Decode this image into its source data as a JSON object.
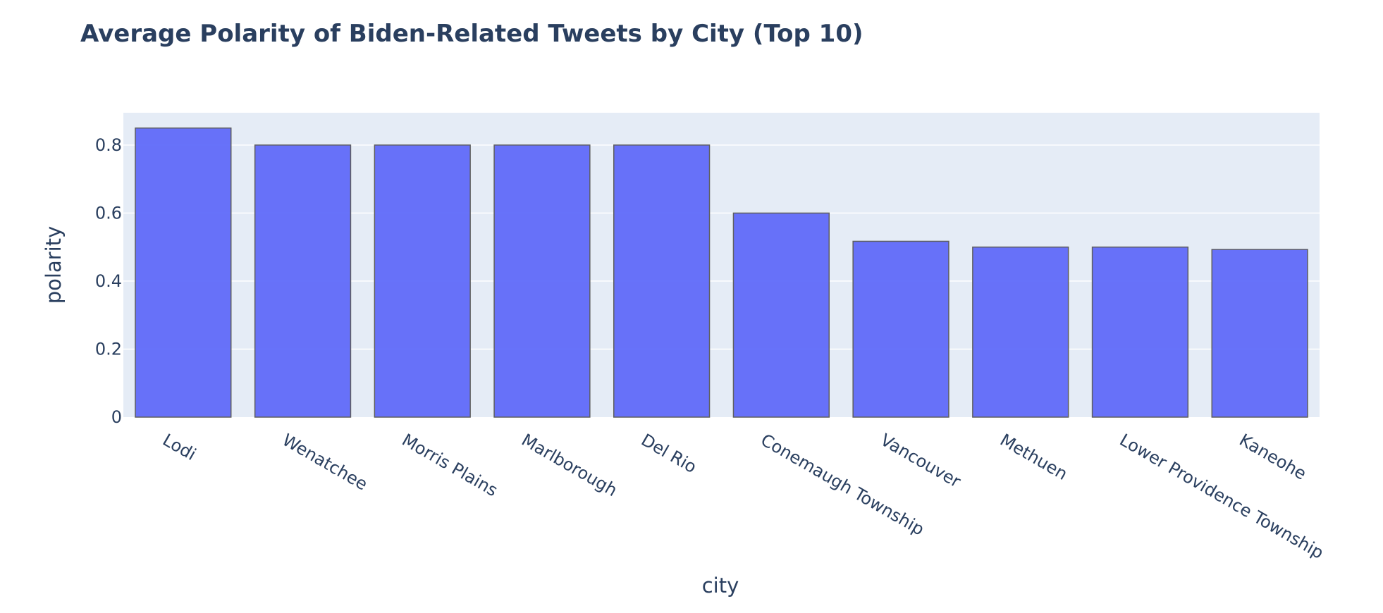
{
  "chart_data": {
    "type": "bar",
    "title": "Average Polarity of Biden-Related Tweets by City (Top 10)",
    "xlabel": "city",
    "ylabel": "polarity",
    "categories": [
      "Lodi",
      "Wenatchee",
      "Morris Plains",
      "Marlborough",
      "Del Rio",
      "Conemaugh Township",
      "Vancouver",
      "Methuen",
      "Lower Providence Township",
      "Kaneohe"
    ],
    "values": [
      0.85,
      0.8,
      0.8,
      0.8,
      0.8,
      0.6,
      0.517,
      0.5,
      0.5,
      0.493
    ],
    "ylim": [
      0,
      0.895
    ],
    "yticks": [
      0,
      0.2,
      0.4,
      0.6,
      0.8
    ],
    "ytick_labels": [
      "0",
      "0.2",
      "0.4",
      "0.6",
      "0.8"
    ],
    "grid": true,
    "legend": "none",
    "colors": {
      "bar": "#636efa",
      "plot_bg": "#e5ecf6",
      "text": "#2a3f5f"
    }
  }
}
